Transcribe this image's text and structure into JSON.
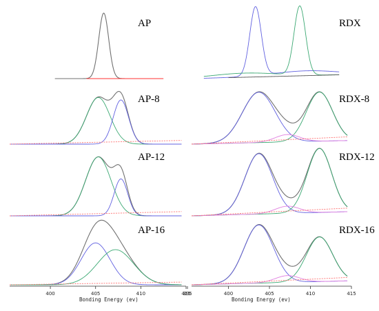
{
  "chart_data": [
    {
      "type": "line",
      "panel": "AP",
      "column": "left",
      "row": 0,
      "xlim": [
        395.5,
        415
      ],
      "ylim": [
        0,
        1
      ],
      "series": [
        {
          "role": "envelope",
          "color": "#707070",
          "peaks": [
            {
              "c": 405.9,
              "w": 0.55,
              "a": 0.95
            }
          ],
          "x_range": [
            400.5,
            409.0
          ]
        },
        {
          "role": "baseline",
          "color": "#ff3030",
          "flat": 0.0,
          "x_range": [
            404.0,
            412.5
          ]
        }
      ]
    },
    {
      "type": "line",
      "panel": "AP-8",
      "column": "left",
      "row": 1,
      "xlim": [
        395.5,
        415
      ],
      "ylim": [
        0,
        1
      ],
      "series": [
        {
          "role": "envelope",
          "color": "#707070",
          "peaks": [
            {
              "c": 405.3,
              "w": 1.3,
              "a": 0.76
            },
            {
              "c": 407.8,
              "w": 0.85,
              "a": 0.72
            }
          ],
          "x_range": [
            395.5,
            414.5
          ]
        },
        {
          "role": "component",
          "color": "#3aa872",
          "peaks": [
            {
              "c": 405.3,
              "w": 1.3,
              "a": 0.76
            }
          ],
          "x_range": [
            395.5,
            414.5
          ]
        },
        {
          "role": "component",
          "color": "#6060e0",
          "peaks": [
            {
              "c": 407.8,
              "w": 0.85,
              "a": 0.72
            }
          ],
          "x_range": [
            395.5,
            414.5
          ]
        },
        {
          "role": "baseline",
          "color": "#ff7070",
          "line": [
            0.0,
            0.06
          ],
          "dashed": true,
          "x_range": [
            395.5,
            414.5
          ]
        }
      ]
    },
    {
      "type": "line",
      "panel": "AP-12",
      "column": "left",
      "row": 2,
      "xlim": [
        395.5,
        415
      ],
      "ylim": [
        0,
        1
      ],
      "series": [
        {
          "role": "envelope",
          "color": "#707070",
          "peaks": [
            {
              "c": 405.3,
              "w": 1.4,
              "a": 0.83
            },
            {
              "c": 407.8,
              "w": 0.75,
              "a": 0.52
            }
          ],
          "x_range": [
            395.5,
            414.5
          ]
        },
        {
          "role": "component",
          "color": "#3aa872",
          "peaks": [
            {
              "c": 405.3,
              "w": 1.4,
              "a": 0.83
            }
          ],
          "x_range": [
            395.5,
            414.5
          ]
        },
        {
          "role": "component",
          "color": "#6060e0",
          "peaks": [
            {
              "c": 407.8,
              "w": 0.75,
              "a": 0.52
            }
          ],
          "x_range": [
            395.5,
            414.5
          ]
        },
        {
          "role": "baseline",
          "color": "#ff7070",
          "line": [
            0.0,
            0.06
          ],
          "dashed": true,
          "x_range": [
            395.5,
            414.5
          ]
        }
      ]
    },
    {
      "type": "line",
      "panel": "AP-16",
      "column": "left",
      "row": 3,
      "xlim": [
        395.5,
        415
      ],
      "ylim": [
        0,
        1
      ],
      "series": [
        {
          "role": "envelope",
          "color": "#707070",
          "peaks": [
            {
              "c": 405.0,
              "w": 1.6,
              "a": 0.62
            },
            {
              "c": 407.2,
              "w": 2.0,
              "a": 0.52
            }
          ],
          "x_range": [
            395.5,
            414.5
          ]
        },
        {
          "role": "component",
          "color": "#6060e0",
          "peaks": [
            {
              "c": 405.0,
              "w": 1.6,
              "a": 0.62
            }
          ],
          "x_range": [
            395.5,
            414.5
          ]
        },
        {
          "role": "component",
          "color": "#3aa872",
          "peaks": [
            {
              "c": 407.2,
              "w": 2.0,
              "a": 0.52
            }
          ],
          "x_range": [
            395.5,
            414.5
          ]
        },
        {
          "role": "baseline",
          "color": "#ff7070",
          "line": [
            0.0,
            0.04
          ],
          "dashed": true,
          "x_range": [
            395.5,
            414.5
          ]
        }
      ]
    },
    {
      "type": "line",
      "panel": "RDX",
      "column": "right",
      "row": 0,
      "xlim": [
        395.5,
        415
      ],
      "ylim": [
        0,
        1
      ],
      "series": [
        {
          "role": "component",
          "color": "#6060e0",
          "peaks": [
            {
              "c": 403.3,
              "w": 0.7,
              "a": 1.0
            },
            {
              "c": 409.5,
              "w": 4.0,
              "a": 0.07
            }
          ],
          "x_range": [
            397.0,
            413.5
          ]
        },
        {
          "role": "component",
          "color": "#3aa872",
          "peaks": [
            {
              "c": 408.7,
              "w": 0.7,
              "a": 1.0
            },
            {
              "c": 402.0,
              "w": 4.0,
              "a": 0.06
            }
          ],
          "x_range": [
            397.0,
            413.5
          ]
        },
        {
          "role": "baseline",
          "color": "#555555",
          "flat": 0.0,
          "x_range": [
            400.0,
            413.5
          ]
        }
      ]
    },
    {
      "type": "line",
      "panel": "RDX-8",
      "column": "right",
      "row": 1,
      "xlim": [
        395.5,
        415
      ],
      "ylim": [
        0,
        1
      ],
      "series": [
        {
          "role": "envelope",
          "color": "#707070",
          "peaks": [
            {
              "c": 403.7,
              "w": 2.0,
              "a": 0.82
            },
            {
              "c": 407.2,
              "w": 1.5,
              "a": 0.12
            },
            {
              "c": 411.1,
              "w": 1.6,
              "a": 0.8
            }
          ],
          "x_range": [
            395.5,
            414.5
          ]
        },
        {
          "role": "component",
          "color": "#6060e0",
          "peaks": [
            {
              "c": 403.7,
              "w": 2.0,
              "a": 0.82
            }
          ],
          "x_range": [
            395.5,
            414.5
          ]
        },
        {
          "role": "component",
          "color": "#3aa872",
          "peaks": [
            {
              "c": 411.1,
              "w": 1.6,
              "a": 0.8
            }
          ],
          "x_range": [
            395.5,
            414.5
          ]
        },
        {
          "role": "component",
          "color": "#e080e0",
          "peaks": [
            {
              "c": 407.2,
              "w": 1.5,
              "a": 0.12
            }
          ],
          "x_range": [
            395.5,
            414.5
          ]
        },
        {
          "role": "baseline",
          "color": "#ff7070",
          "line": [
            0.0,
            0.06
          ],
          "dashed": true,
          "x_range": [
            395.5,
            414.5
          ]
        }
      ]
    },
    {
      "type": "line",
      "panel": "RDX-12",
      "column": "right",
      "row": 2,
      "xlim": [
        395.5,
        415
      ],
      "ylim": [
        0,
        1
      ],
      "series": [
        {
          "role": "envelope",
          "color": "#707070",
          "peaks": [
            {
              "c": 403.7,
              "w": 1.7,
              "a": 0.85
            },
            {
              "c": 407.2,
              "w": 1.5,
              "a": 0.1
            },
            {
              "c": 411.1,
              "w": 1.5,
              "a": 0.9
            }
          ],
          "x_range": [
            395.5,
            414.5
          ]
        },
        {
          "role": "component",
          "color": "#6060e0",
          "peaks": [
            {
              "c": 403.7,
              "w": 1.7,
              "a": 0.85
            }
          ],
          "x_range": [
            395.5,
            414.5
          ]
        },
        {
          "role": "component",
          "color": "#3aa872",
          "peaks": [
            {
              "c": 411.1,
              "w": 1.5,
              "a": 0.9
            }
          ],
          "x_range": [
            395.5,
            414.5
          ]
        },
        {
          "role": "component",
          "color": "#e080e0",
          "peaks": [
            {
              "c": 407.2,
              "w": 1.5,
              "a": 0.1
            }
          ],
          "x_range": [
            395.5,
            414.5
          ]
        },
        {
          "role": "baseline",
          "color": "#ff7070",
          "line": [
            0.0,
            0.05
          ],
          "dashed": true,
          "x_range": [
            395.5,
            414.5
          ]
        }
      ]
    },
    {
      "type": "line",
      "panel": "RDX-16",
      "column": "right",
      "row": 3,
      "xlim": [
        395.5,
        415
      ],
      "ylim": [
        0,
        1
      ],
      "series": [
        {
          "role": "envelope",
          "color": "#707070",
          "peaks": [
            {
              "c": 403.7,
              "w": 1.8,
              "a": 0.86
            },
            {
              "c": 407.2,
              "w": 1.5,
              "a": 0.1
            },
            {
              "c": 411.1,
              "w": 1.6,
              "a": 0.66
            }
          ],
          "x_range": [
            395.5,
            414.5
          ]
        },
        {
          "role": "component",
          "color": "#6060e0",
          "peaks": [
            {
              "c": 403.7,
              "w": 1.8,
              "a": 0.86
            }
          ],
          "x_range": [
            395.5,
            414.5
          ]
        },
        {
          "role": "component",
          "color": "#3aa872",
          "peaks": [
            {
              "c": 411.1,
              "w": 1.6,
              "a": 0.66
            }
          ],
          "x_range": [
            395.5,
            414.5
          ]
        },
        {
          "role": "component",
          "color": "#e080e0",
          "peaks": [
            {
              "c": 407.2,
              "w": 1.5,
              "a": 0.1
            }
          ],
          "x_range": [
            395.5,
            414.5
          ]
        },
        {
          "role": "baseline",
          "color": "#ff7070",
          "line": [
            0.0,
            0.05
          ],
          "dashed": true,
          "x_range": [
            395.5,
            414.5
          ]
        }
      ]
    }
  ],
  "axes": {
    "left": {
      "ticks": [
        400,
        405,
        410,
        415
      ],
      "tick_labels": [
        "400",
        "405",
        "410",
        "415"
      ],
      "title": "Bonding Energy  (ev)"
    },
    "right": {
      "ticks": [
        395,
        400,
        405,
        410,
        415
      ],
      "tick_labels": [
        "395",
        "400",
        "405",
        "410",
        "415"
      ],
      "title": "Bonding Energy (ev)"
    }
  }
}
